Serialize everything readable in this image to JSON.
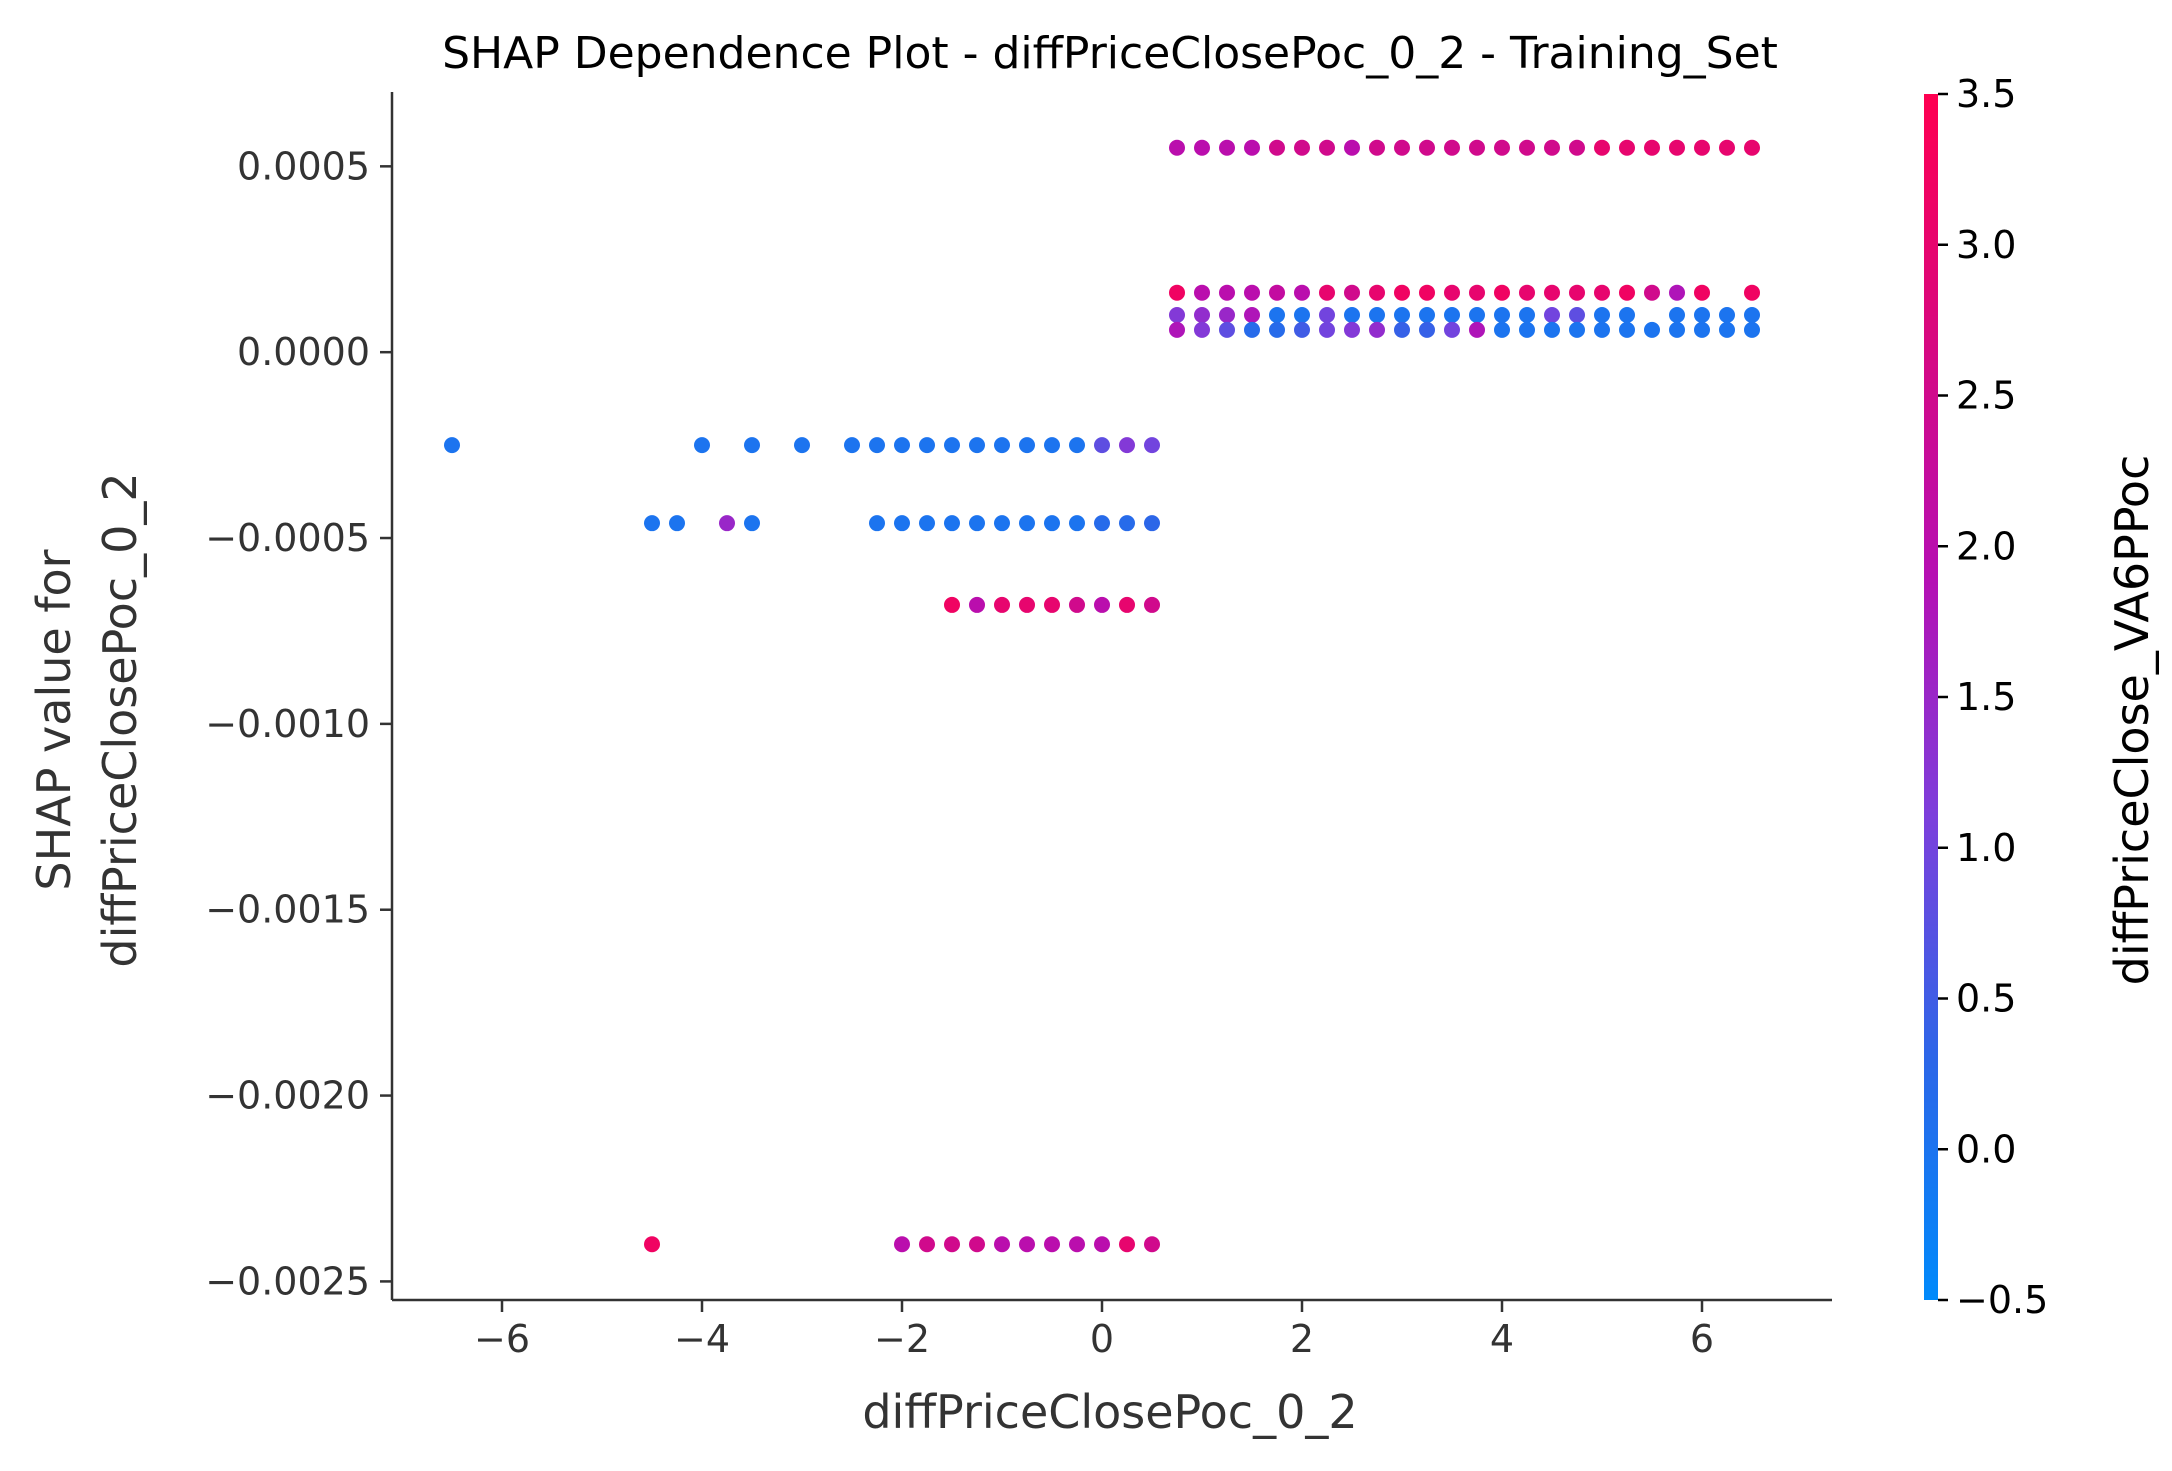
{
  "chart_data": {
    "type": "scatter",
    "title": "SHAP Dependence Plot - diffPriceClosePoc_0_2 - Training_Set",
    "xlabel": "diffPriceClosePoc_0_2",
    "ylabel_lines": [
      "SHAP value for",
      "diffPriceClosePoc_0_2"
    ],
    "xlim": [
      -7.1,
      7.3
    ],
    "ylim": [
      -0.00255,
      0.0007
    ],
    "x_ticks": [
      -6,
      -4,
      -2,
      0,
      2,
      4,
      6
    ],
    "x_tick_labels": [
      "−6",
      "−4",
      "−2",
      "0",
      "2",
      "4",
      "6"
    ],
    "y_ticks": [
      0.0005,
      0.0,
      -0.0005,
      -0.001,
      -0.0015,
      -0.002,
      -0.0025
    ],
    "y_tick_labels": [
      "0.0005",
      "0.0000",
      "−0.0005",
      "−0.0010",
      "−0.0015",
      "−0.0020",
      "−0.0025"
    ],
    "colorbar": {
      "label": "diffPriceClose_VA6PPoc",
      "range": [
        -0.5,
        3.5
      ],
      "ticks": [
        3.5,
        3.0,
        2.5,
        2.0,
        1.5,
        1.0,
        0.5,
        0.0,
        -0.5
      ],
      "tick_labels": [
        "3.5",
        "3.0",
        "2.5",
        "2.0",
        "1.5",
        "1.0",
        "0.5",
        "0.0",
        "−0.5"
      ],
      "colors": [
        "#008afb",
        "#2c66e8",
        "#7c3fdc",
        "#b60fb3",
        "#d8087f",
        "#ff0051"
      ]
    },
    "rows": [
      {
        "y": 0.00055,
        "x": [
          0.75,
          1.0,
          1.25,
          1.5,
          1.75,
          2.0,
          2.25,
          2.5,
          2.75,
          3.0,
          3.25,
          3.5,
          3.75,
          4.0,
          4.25,
          4.5,
          4.75,
          5.0,
          5.25,
          5.5,
          5.75,
          6.0,
          6.25,
          6.5
        ],
        "c": [
          2.0,
          2.0,
          2.0,
          2.0,
          2.5,
          2.5,
          2.5,
          2.0,
          2.5,
          2.5,
          2.5,
          2.5,
          2.5,
          2.5,
          2.5,
          2.5,
          2.5,
          3.0,
          3.0,
          3.0,
          3.0,
          3.0,
          3.0,
          3.0
        ]
      },
      {
        "y": 0.00016,
        "x": [
          0.75,
          1.0,
          1.25,
          1.5,
          1.75,
          2.0,
          2.25,
          2.5,
          2.75,
          3.0,
          3.25,
          3.5,
          3.75,
          4.0,
          4.25,
          4.5,
          4.75,
          5.0,
          5.25,
          5.5,
          5.75,
          6.0,
          6.5
        ],
        "c": [
          3.2,
          2.0,
          2.0,
          2.0,
          2.2,
          2.0,
          3.0,
          2.5,
          3.0,
          3.2,
          3.2,
          3.0,
          3.0,
          3.2,
          3.0,
          3.0,
          3.0,
          3.0,
          3.2,
          2.5,
          1.8,
          3.2,
          3.2
        ]
      },
      {
        "y": 0.0001,
        "x": [
          0.75,
          1.0,
          1.25,
          1.5,
          1.75,
          2.0,
          2.25,
          2.5,
          2.75,
          3.0,
          3.25,
          3.5,
          3.75,
          4.0,
          4.25,
          4.5,
          4.75,
          5.0,
          5.25,
          5.75,
          6.0,
          6.25,
          6.5
        ],
        "c": [
          1.2,
          1.4,
          1.5,
          1.8,
          0.0,
          0.0,
          1.0,
          0.0,
          0.0,
          0.0,
          0.0,
          0.0,
          0.0,
          0.0,
          0.0,
          1.0,
          0.8,
          0.0,
          0.0,
          0.0,
          0.0,
          0.0,
          0.0
        ]
      },
      {
        "y": 6e-05,
        "x": [
          0.75,
          1.0,
          1.25,
          1.5,
          1.75,
          2.0,
          2.25,
          2.5,
          2.75,
          3.0,
          3.25,
          3.5,
          3.75,
          4.0,
          4.25,
          4.5,
          4.75,
          5.0,
          5.25,
          5.5,
          5.75,
          6.0,
          6.25,
          6.5
        ],
        "c": [
          1.8,
          1.2,
          0.8,
          0.2,
          0.2,
          0.5,
          1.0,
          1.2,
          1.4,
          0.4,
          0.4,
          1.0,
          1.8,
          0.0,
          0.0,
          0.0,
          0.0,
          0.0,
          0.0,
          0.0,
          0.0,
          0.0,
          0.0,
          0.0
        ]
      },
      {
        "y": -0.00025,
        "x": [
          -6.5,
          -4.0,
          -3.5,
          -3.0,
          -2.5,
          -2.25,
          -2.0,
          -1.75,
          -1.5,
          -1.25,
          -1.0,
          -0.75,
          -0.5,
          -0.25,
          0.0,
          0.25,
          0.5
        ],
        "c": [
          0.0,
          0.0,
          0.0,
          0.0,
          0.0,
          0.0,
          0.0,
          0.0,
          0.0,
          0.0,
          0.0,
          0.0,
          0.0,
          0.0,
          0.8,
          1.2,
          1.0
        ]
      },
      {
        "y": -0.00046,
        "x": [
          -4.5,
          -4.25,
          -3.75,
          -3.5,
          -2.25,
          -2.0,
          -1.75,
          -1.5,
          -1.25,
          -1.0,
          -0.75,
          -0.5,
          -0.25,
          0.0,
          0.25,
          0.5
        ],
        "c": [
          0.0,
          0.0,
          1.5,
          0.0,
          0.0,
          0.0,
          0.0,
          0.0,
          0.0,
          0.0,
          0.0,
          0.0,
          0.0,
          0.2,
          0.2,
          0.3
        ]
      },
      {
        "y": -0.00068,
        "x": [
          -1.5,
          -1.25,
          -1.0,
          -0.75,
          -0.5,
          -0.25,
          0.0,
          0.25,
          0.5
        ],
        "c": [
          3.2,
          2.0,
          3.0,
          3.0,
          3.0,
          2.5,
          2.0,
          3.0,
          2.5
        ]
      },
      {
        "y": -0.0024,
        "x": [
          -4.5,
          -2.0,
          -1.75,
          -1.5,
          -1.25,
          -1.0,
          -0.75,
          -0.5,
          -0.25,
          0.0,
          0.25,
          0.5
        ],
        "c": [
          3.2,
          2.0,
          2.5,
          2.5,
          2.5,
          2.0,
          2.0,
          2.0,
          2.0,
          2.0,
          3.0,
          2.5
        ]
      }
    ]
  }
}
